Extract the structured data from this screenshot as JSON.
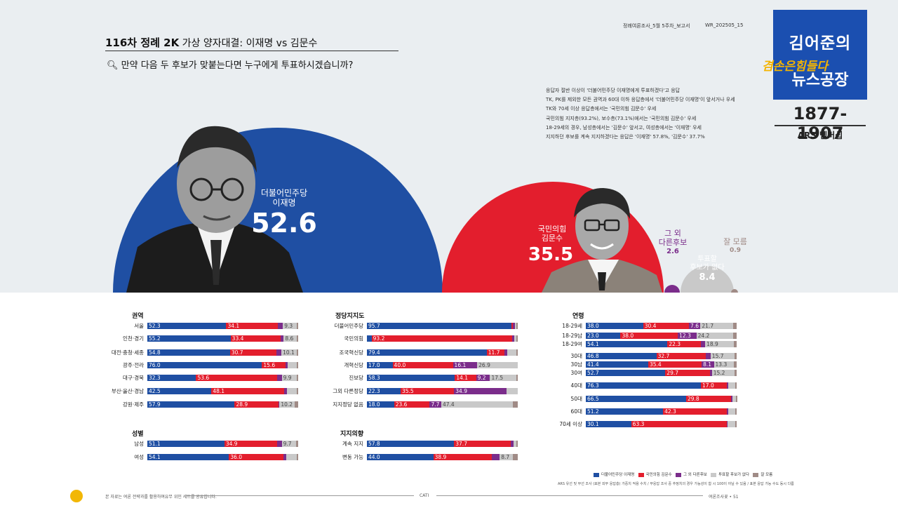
{
  "header": {
    "title_bold": "116차 정례 2K",
    "title_rest": "가상 양자대결: 이재명 vs 김문수",
    "question": "만약 다음 두 후보가 맞붙는다면 누구에게 투표하시겠습니까?",
    "meta_left": "정례여론조사_5월 5주차_보고서",
    "meta_right": "WR_202505_15"
  },
  "logo": {
    "line1": "김어준의",
    "line2": "겸손은힘들다",
    "line3": "뉴스공장",
    "years": "1877-1907",
    "ars": "ARS 멤버십"
  },
  "notes": [
    "응답자 절반 이상이 '더불어민주당 이재명에게 투표하겠다'고 응답",
    "TK, PK를 제외한 모든 권역과 60대 이하 응답층에서 '더불어민주당 이재명'이 앞서거나 우세",
    "TK와 70세 이상 응답층에서는 '국민의힘 김문수' 우세",
    "국민의힘 지지층(93.2%), 보수층(73.1%)에서는 '국민의힘 김문수' 우세",
    "18-29세의 경우, 남성층에서는 '김문수' 앞서고, 여성층에서는 '이재명' 우세",
    "지지하던 후보를 계속 지지하겠다는 응답은 '이재명' 57.8%, '김문수' 37.7%"
  ],
  "colors": {
    "lee": "#1f4fa3",
    "kim": "#e31e2d",
    "other": "#7b2d8b",
    "none": "#c9c9c9",
    "dk": "#a08b86",
    "accent": "#f2b705"
  },
  "main": {
    "lee_party": "더불어민주당",
    "lee_name": "이재명",
    "lee_value": "52.6",
    "kim_party": "국민의힘",
    "kim_name": "김문수",
    "kim_value": "35.5",
    "other_label1": "그 외",
    "other_label2": "다른후보",
    "other_value": "2.6",
    "none_label1": "투표할",
    "none_label2": "후보가 없다",
    "none_value": "8.4",
    "dk_label": "잘 모름",
    "dk_value": "0.9"
  },
  "footer": {
    "left": "본 자료는 여론 전략과를 활용하며유무 위인 세트를 공유합니다.",
    "center": "CATI",
    "right": "여론조사꽃 • 51",
    "method": "ARS 유선 및 무선 조사 (표본 외부 응답층) 가중치 적용 수치 / 무응답 조사 중 추정치의 경우 가능성이 합 시 100이 아닐 수 있음 / 표본 응답 가능 수도 동시 다름"
  },
  "chart_data": {
    "type": "bar",
    "stacked": true,
    "title": "가상 양자대결: 이재명 vs 김문수",
    "legend": [
      {
        "key": "lee",
        "label": "더불어민주당 이재명"
      },
      {
        "key": "kim",
        "label": "국민의힘 김문수"
      },
      {
        "key": "other",
        "label": "그 외 다른후보"
      },
      {
        "key": "none",
        "label": "투표할 후보가 없다"
      },
      {
        "key": "dk",
        "label": "잘 모름"
      }
    ],
    "overall": {
      "lee": 52.6,
      "kim": 35.5,
      "other": 2.6,
      "none": 8.4,
      "dk": 0.9
    },
    "groups": [
      {
        "title": "권역",
        "rows": [
          {
            "label": "서울",
            "values": [
              52.3,
              34.1,
              3.5,
              9.3,
              0.8
            ]
          },
          {
            "label": "인천·경기",
            "values": [
              55.2,
              33.4,
              1.8,
              8.6,
              1.0
            ]
          },
          {
            "label": "대전·충청·세종",
            "values": [
              54.8,
              30.7,
              3.4,
              10.1,
              1.0
            ]
          },
          {
            "label": "광주·전라",
            "values": [
              76.0,
              15.6,
              1.5,
              6.0,
              0.9
            ]
          },
          {
            "label": "대구·경북",
            "values": [
              32.3,
              53.6,
              3.2,
              9.9,
              1.0
            ]
          },
          {
            "label": "부산·울산·경남",
            "values": [
              42.5,
              48.1,
              2.0,
              6.6,
              0.8
            ]
          },
          {
            "label": "강원·제주",
            "values": [
              57.9,
              28.9,
              0.8,
              10.2,
              2.2
            ]
          }
        ]
      },
      {
        "title": "성별",
        "rows": [
          {
            "label": "남성",
            "values": [
              51.1,
              34.9,
              3.1,
              9.7,
              1.2
            ]
          },
          {
            "label": "여성",
            "values": [
              54.1,
              36.0,
              2.1,
              7.1,
              0.7
            ]
          }
        ]
      },
      {
        "title": "정당지지도",
        "rows": [
          {
            "label": "더불어민주당",
            "values": [
              95.7,
              1.1,
              1.4,
              1.0,
              0.8
            ]
          },
          {
            "label": "국민의힘",
            "values": [
              3.1,
              93.2,
              1.5,
              1.4,
              0.8
            ]
          },
          {
            "label": "조국혁신당",
            "values": [
              79.4,
              11.7,
              2.1,
              5.7,
              1.1
            ]
          },
          {
            "label": "개혁신당",
            "values": [
              17.0,
              40.0,
              16.1,
              26.9,
              0.0
            ]
          },
          {
            "label": "진보당",
            "values": [
              58.3,
              14.1,
              9.2,
              17.5,
              0.9
            ]
          },
          {
            "label": "그외 다른정당",
            "values": [
              22.3,
              35.5,
              34.9,
              7.3,
              0.0
            ]
          },
          {
            "label": "지지정당 없음",
            "values": [
              18.0,
              23.6,
              7.7,
              47.4,
              3.3
            ]
          }
        ]
      },
      {
        "title": "지지의향",
        "rows": [
          {
            "label": "계속 지지",
            "values": [
              57.8,
              37.7,
              1.8,
              1.9,
              0.8
            ]
          },
          {
            "label": "변동 가능",
            "values": [
              44.0,
              38.9,
              5.1,
              8.7,
              3.3
            ]
          }
        ]
      },
      {
        "title": "연령",
        "rows": [
          {
            "label": "18-29세",
            "values": [
              38.0,
              30.4,
              7.6,
              21.7,
              2.3
            ]
          },
          {
            "label": "18-29남",
            "values": [
              23.0,
              38.0,
              12.3,
              24.2,
              2.5
            ]
          },
          {
            "label": "18-29여",
            "values": [
              54.1,
              22.3,
              2.7,
              18.9,
              2.0
            ]
          },
          {
            "label": "30대",
            "values": [
              46.8,
              32.7,
              3.2,
              15.7,
              1.6
            ]
          },
          {
            "label": "30남",
            "values": [
              41.4,
              35.4,
              8.1,
              13.3,
              1.8
            ]
          },
          {
            "label": "30여",
            "values": [
              52.7,
              29.7,
              1.2,
              15.2,
              1.2
            ]
          },
          {
            "label": "40대",
            "values": [
              76.3,
              17.0,
              1.3,
              4.6,
              0.8
            ]
          },
          {
            "label": "50대",
            "values": [
              66.5,
              29.8,
              0.7,
              2.5,
              0.5
            ]
          },
          {
            "label": "60대",
            "values": [
              51.2,
              42.3,
              0.8,
              5.0,
              0.7
            ]
          },
          {
            "label": "70세 이상",
            "values": [
              30.1,
              63.3,
              0.6,
              5.0,
              1.0
            ]
          }
        ]
      }
    ]
  }
}
